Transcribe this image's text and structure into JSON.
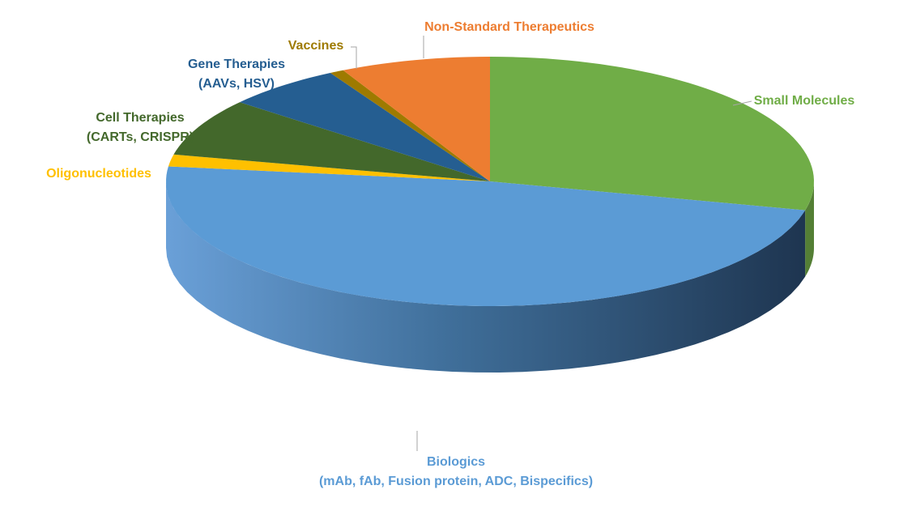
{
  "chart_data": {
    "type": "pie",
    "three_d": true,
    "legend": "none",
    "start_angle_deg": 90,
    "direction": "clockwise",
    "slices": [
      {
        "label_lines": [
          "Small Molecules"
        ],
        "value": 28,
        "color": "#70AD47"
      },
      {
        "label_lines": [
          "Biologics",
          "(mAb, fAb, Fusion protein, ADC, Bispecifics)"
        ],
        "value": 47,
        "color": "#5B9BD5"
      },
      {
        "label_lines": [
          "Oligonucleotides"
        ],
        "value": 1.5,
        "color": "#FFC000"
      },
      {
        "label_lines": [
          "Cell Therapies",
          "(CARTs, CRISPR)"
        ],
        "value": 7.3,
        "color": "#43682B"
      },
      {
        "label_lines": [
          "Gene Therapies",
          "(AAVs, HSV)"
        ],
        "value": 5.7,
        "color": "#255E91"
      },
      {
        "label_lines": [
          "Vaccines"
        ],
        "value": 0.7,
        "color": "#9E7A00"
      },
      {
        "label_lines": [
          "Non-Standard Therapeutics"
        ],
        "value": 7.3,
        "color": "#ED7D31"
      }
    ]
  }
}
